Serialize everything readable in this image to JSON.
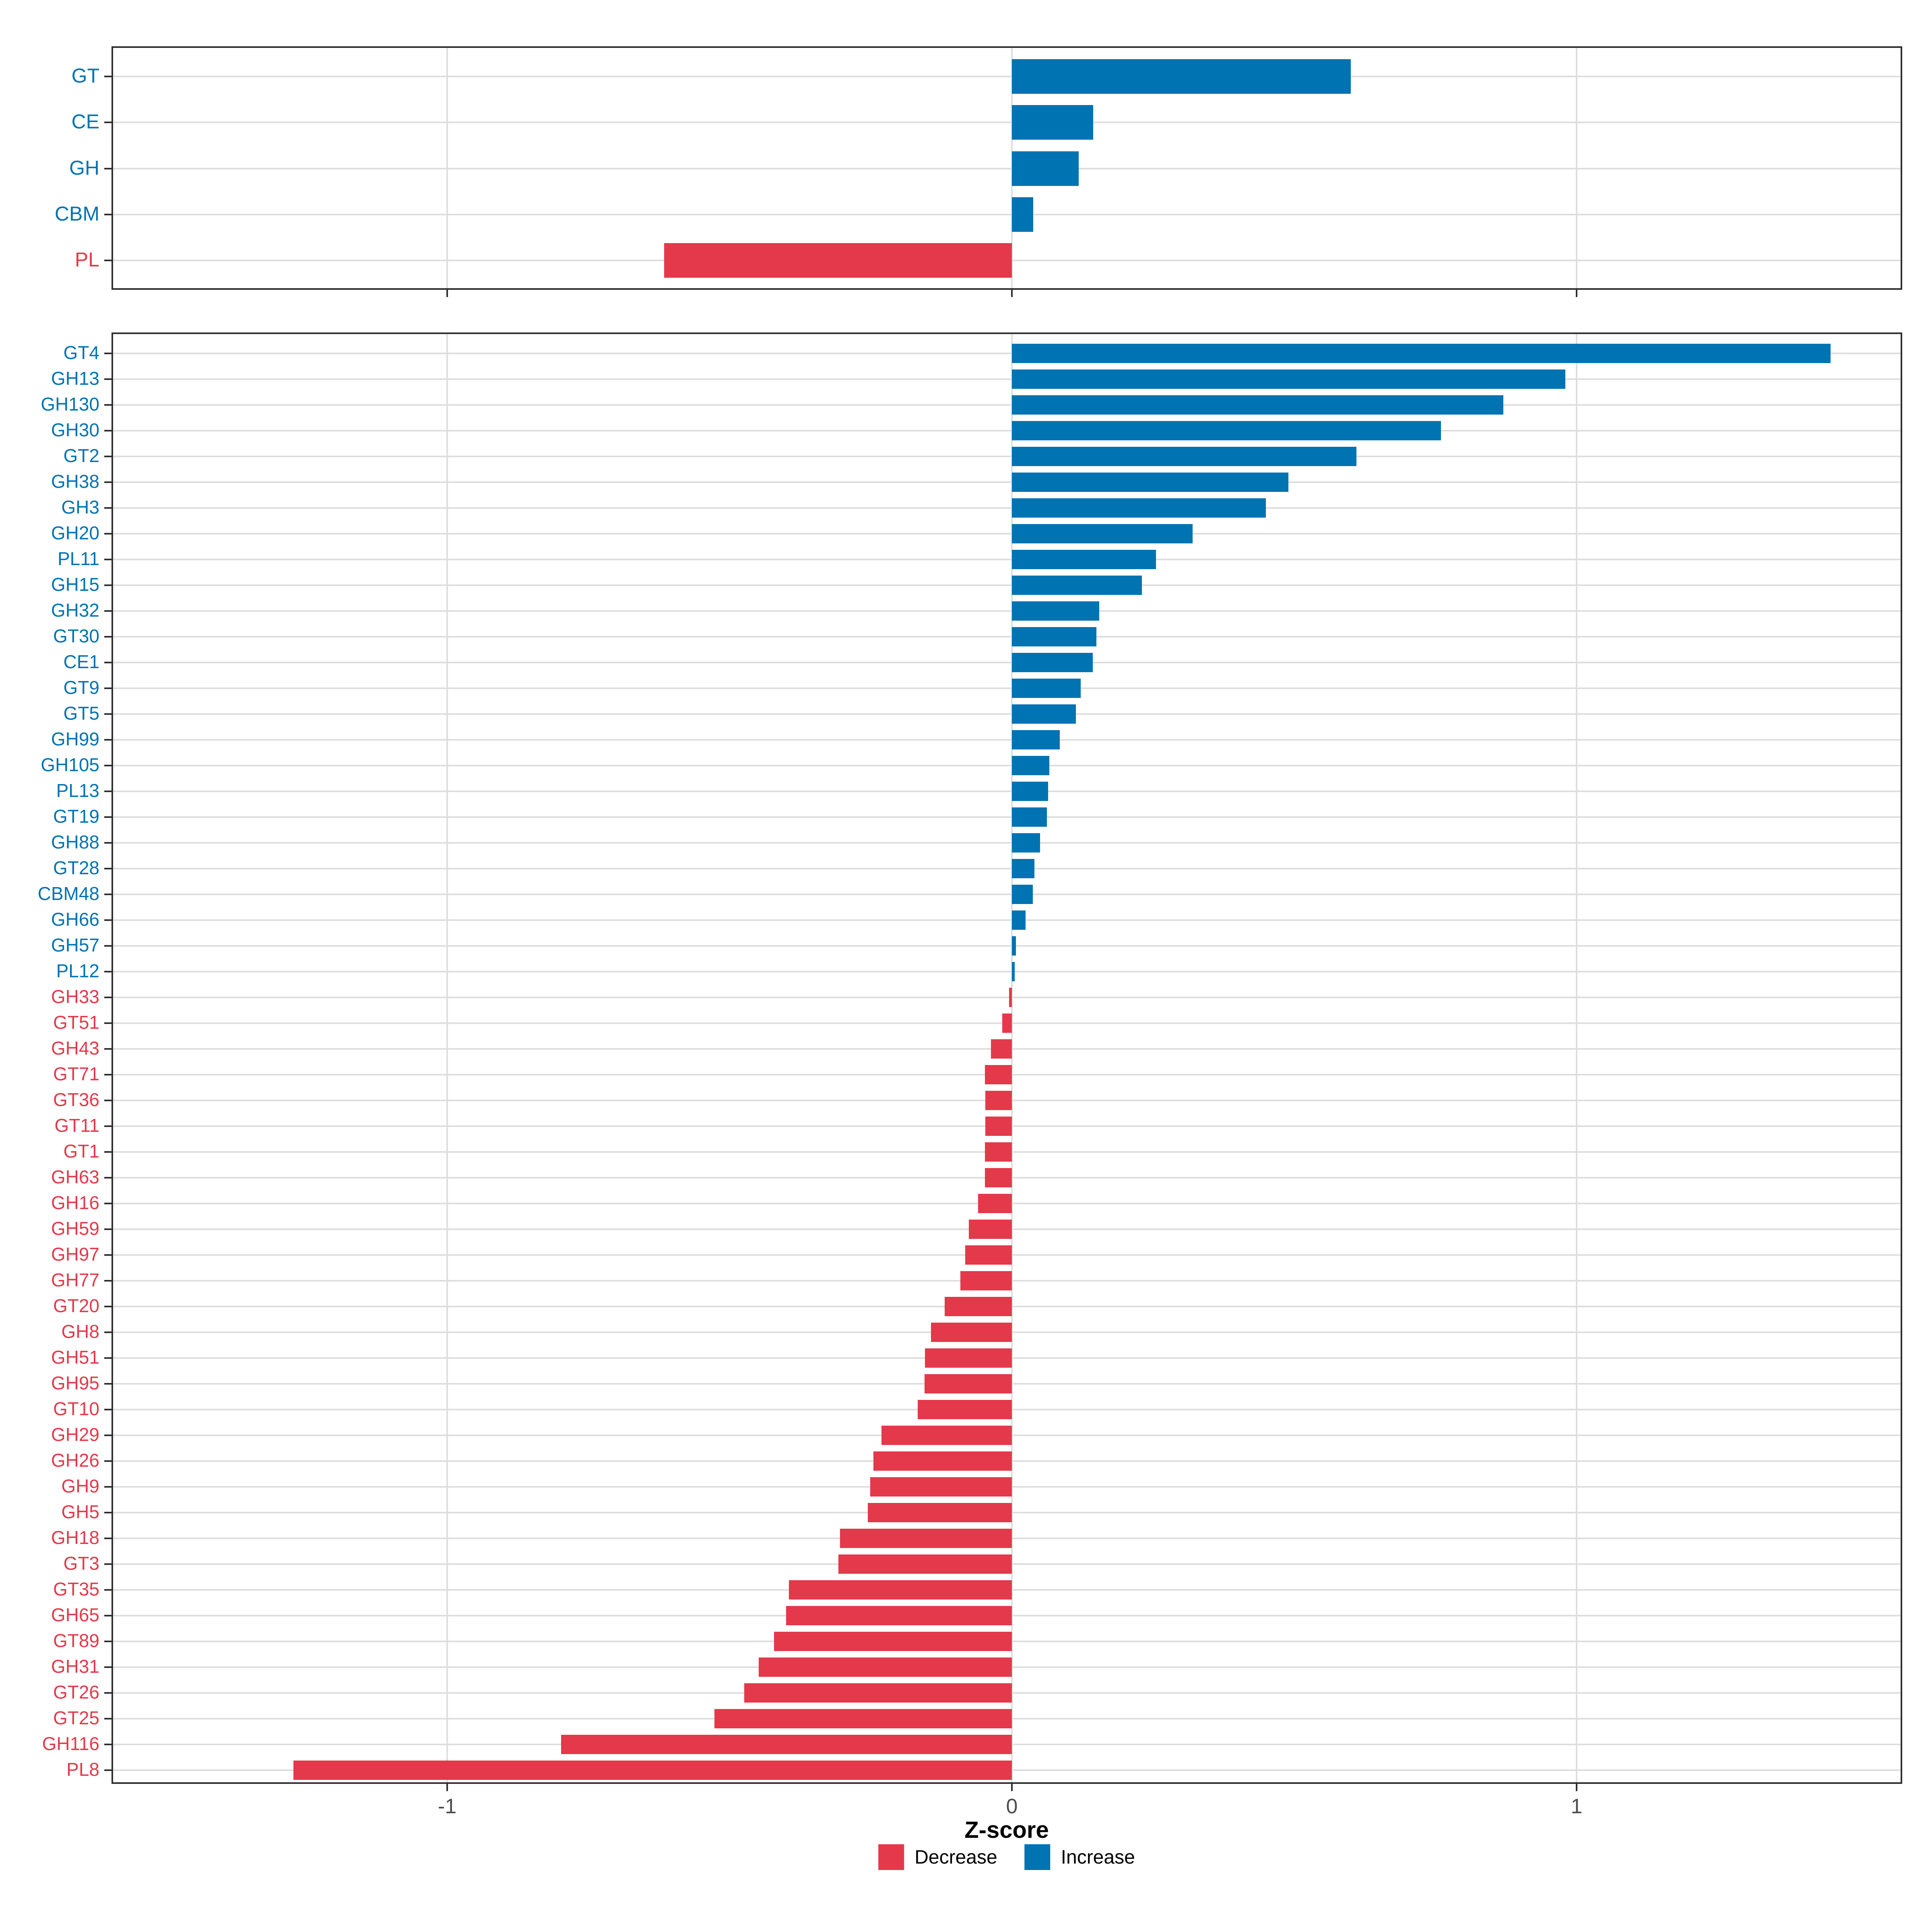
{
  "axis": {
    "xlabel": "Z-score",
    "tick_labels": [
      "-1",
      "0",
      "1"
    ],
    "tick_values": [
      -1,
      0,
      1
    ]
  },
  "colors": {
    "increase": "#0073B2",
    "decrease": "#E4394B",
    "grid": "#DEDEDE",
    "border": "#2F2F2F",
    "tick_label": "#4D4D4D"
  },
  "legend": {
    "items": [
      {
        "label": "Decrease",
        "color_key": "decrease"
      },
      {
        "label": "Increase",
        "color_key": "increase"
      }
    ]
  },
  "chart_data": [
    {
      "type": "bar",
      "orientation": "horizontal",
      "panel": "top",
      "title": "",
      "xlabel": "Z-score",
      "ylabel": "",
      "xlim": [
        -1.59,
        1.58
      ],
      "grid": "major-only",
      "categories": [
        "GT",
        "CE",
        "GH",
        "CBM",
        "PL"
      ],
      "values": [
        0.6,
        0.144,
        0.118,
        0.038,
        -0.616
      ]
    },
    {
      "type": "bar",
      "orientation": "horizontal",
      "panel": "bottom",
      "title": "",
      "xlabel": "Z-score",
      "ylabel": "",
      "xlim": [
        -1.59,
        1.58
      ],
      "grid": "major-only",
      "categories": [
        "GT4",
        "GH13",
        "GH130",
        "GH30",
        "GT2",
        "GH38",
        "GH3",
        "GH20",
        "PL11",
        "GH15",
        "GH32",
        "GT30",
        "CE1",
        "GT9",
        "GT5",
        "GH99",
        "GH105",
        "PL13",
        "GT19",
        "GH88",
        "GT28",
        "CBM48",
        "GH66",
        "GH57",
        "PL12",
        "GH33",
        "GT51",
        "GH43",
        "GT71",
        "GT36",
        "GT11",
        "GT1",
        "GH63",
        "GH16",
        "GH59",
        "GH97",
        "GH77",
        "GT20",
        "GH8",
        "GH51",
        "GH95",
        "GT10",
        "GH29",
        "GH26",
        "GH9",
        "GH5",
        "GH18",
        "GT3",
        "GT35",
        "GH65",
        "GT89",
        "GH31",
        "GT26",
        "GT25",
        "GH116",
        "PL8"
      ],
      "values": [
        1.45,
        0.98,
        0.87,
        0.76,
        0.61,
        0.49,
        0.45,
        0.32,
        0.255,
        0.23,
        0.155,
        0.15,
        0.143,
        0.122,
        0.113,
        0.085,
        0.066,
        0.064,
        0.062,
        0.05,
        0.04,
        0.037,
        0.024,
        0.007,
        0.005,
        -0.005,
        -0.017,
        -0.037,
        -0.048,
        -0.047,
        -0.047,
        -0.048,
        -0.048,
        -0.06,
        -0.076,
        -0.083,
        -0.091,
        -0.119,
        -0.143,
        -0.154,
        -0.155,
        -0.167,
        -0.231,
        -0.245,
        -0.251,
        -0.255,
        -0.304,
        -0.307,
        -0.395,
        -0.4,
        -0.421,
        -0.448,
        -0.474,
        -0.527,
        -0.798,
        -1.272
      ]
    }
  ]
}
